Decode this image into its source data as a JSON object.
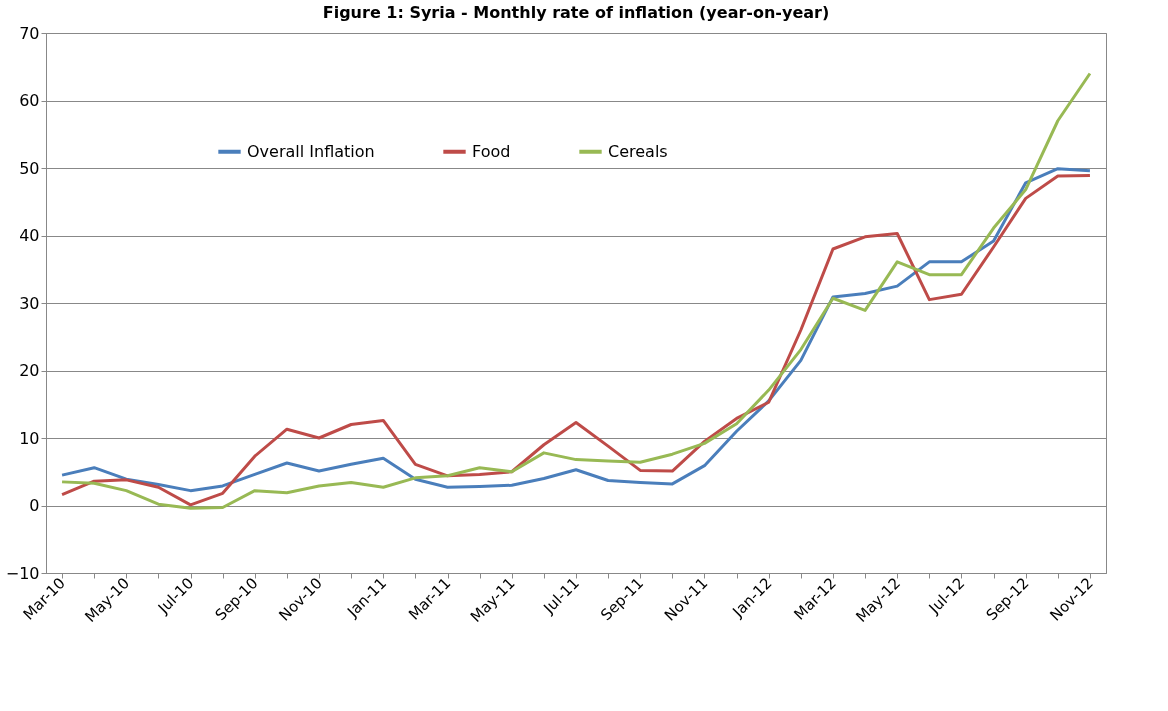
{
  "chart_data": {
    "type": "line",
    "title": "Figure 1: Syria - Monthly rate of inflation (year-on-year)",
    "categories": [
      "Mar-10",
      null,
      "May-10",
      null,
      "Jul-10",
      null,
      "Sep-10",
      null,
      "Nov-10",
      null,
      "Jan-11",
      null,
      "Mar-11",
      null,
      "May-11",
      null,
      "Jul-11",
      null,
      "Sep-11",
      null,
      "Nov-11",
      null,
      "Jan-12",
      null,
      "Mar-12",
      null,
      "May-12",
      null,
      "Jul-12",
      null,
      "Sep-12",
      null,
      "Nov-12"
    ],
    "series": [
      {
        "name": "Overall Inflation",
        "color": "#4a7ebb",
        "values": [
          4.5,
          5.6,
          3.9,
          3.1,
          2.2,
          2.9,
          4.6,
          6.3,
          5.1,
          6.1,
          7.0,
          3.9,
          2.7,
          2.8,
          3.0,
          4.0,
          5.3,
          3.7,
          3.4,
          3.2,
          5.9,
          11.0,
          15.5,
          21.5,
          30.9,
          31.4,
          32.5,
          36.1,
          36.1,
          39.2,
          47.8,
          49.9,
          49.6
        ]
      },
      {
        "name": "Food",
        "color": "#be4b48",
        "values": [
          1.6,
          3.6,
          3.8,
          2.7,
          0.1,
          1.8,
          7.3,
          11.3,
          10.0,
          12.0,
          12.6,
          6.1,
          4.4,
          4.6,
          5.0,
          9.0,
          12.3,
          8.8,
          5.2,
          5.1,
          9.5,
          12.9,
          15.3,
          26.0,
          38.0,
          39.8,
          40.3,
          30.5,
          31.3,
          38.3,
          45.5,
          48.8,
          48.9
        ]
      },
      {
        "name": "Cereals",
        "color": "#98b954",
        "values": [
          3.5,
          3.3,
          2.2,
          0.2,
          -0.4,
          -0.3,
          2.2,
          1.9,
          2.9,
          3.4,
          2.7,
          4.1,
          4.4,
          5.6,
          5.0,
          7.8,
          6.8,
          6.6,
          6.4,
          7.6,
          9.2,
          12.1,
          17.1,
          23.1,
          30.7,
          28.9,
          36.1,
          34.2,
          34.2,
          41.1,
          46.8,
          57.0,
          64.0
        ]
      }
    ],
    "ylim": [
      -10,
      70
    ],
    "yticks": [
      -10,
      0,
      10,
      20,
      30,
      40,
      50,
      60,
      70
    ],
    "grid": "y",
    "legend": "top",
    "line_style": "solid",
    "marker": "none"
  }
}
